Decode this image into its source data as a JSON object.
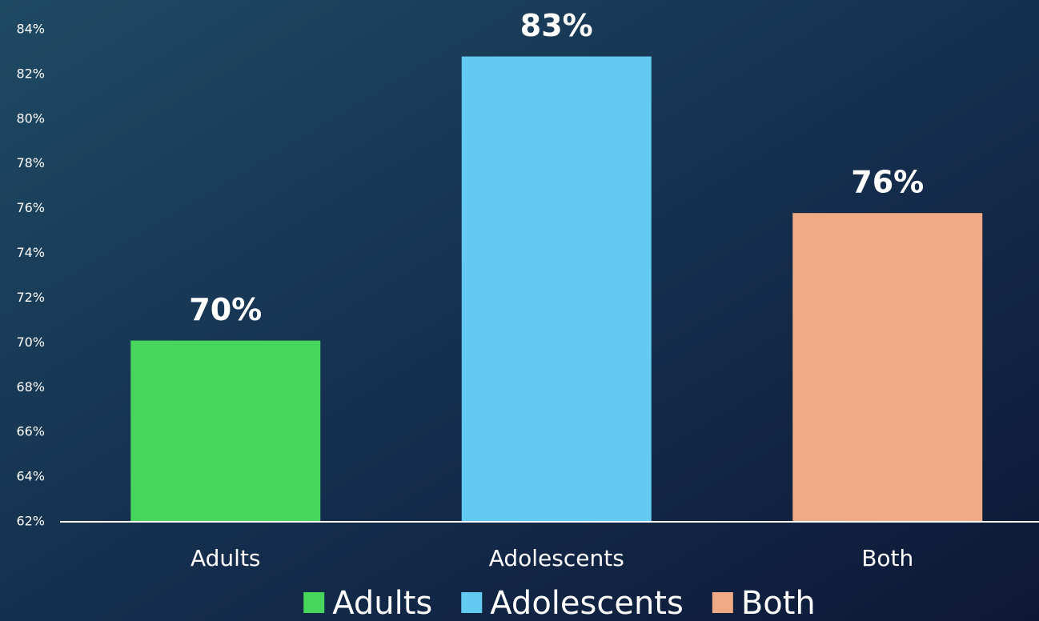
{
  "chart_data": {
    "type": "bar",
    "categories": [
      "Adults",
      "Adolescents",
      "Both"
    ],
    "values": [
      70.1,
      82.8,
      75.8
    ],
    "value_labels": [
      "70%",
      "83%",
      "76%"
    ],
    "colors": [
      "#47d55c",
      "#63cbf2",
      "#f0aa86"
    ],
    "ylim": [
      62,
      84
    ],
    "yticks": [
      {
        "value": 62,
        "label": "62%"
      },
      {
        "value": 64,
        "label": "64%"
      },
      {
        "value": 66,
        "label": "66%"
      },
      {
        "value": 68,
        "label": "68%"
      },
      {
        "value": 70,
        "label": "70%"
      },
      {
        "value": 72,
        "label": "72%"
      },
      {
        "value": 74,
        "label": "74%"
      },
      {
        "value": 76,
        "label": "76%"
      },
      {
        "value": 78,
        "label": "78%"
      },
      {
        "value": 80,
        "label": "80%"
      },
      {
        "value": 82,
        "label": "82%"
      },
      {
        "value": 84,
        "label": "84%"
      }
    ],
    "grid": false,
    "legend": "bottom"
  }
}
